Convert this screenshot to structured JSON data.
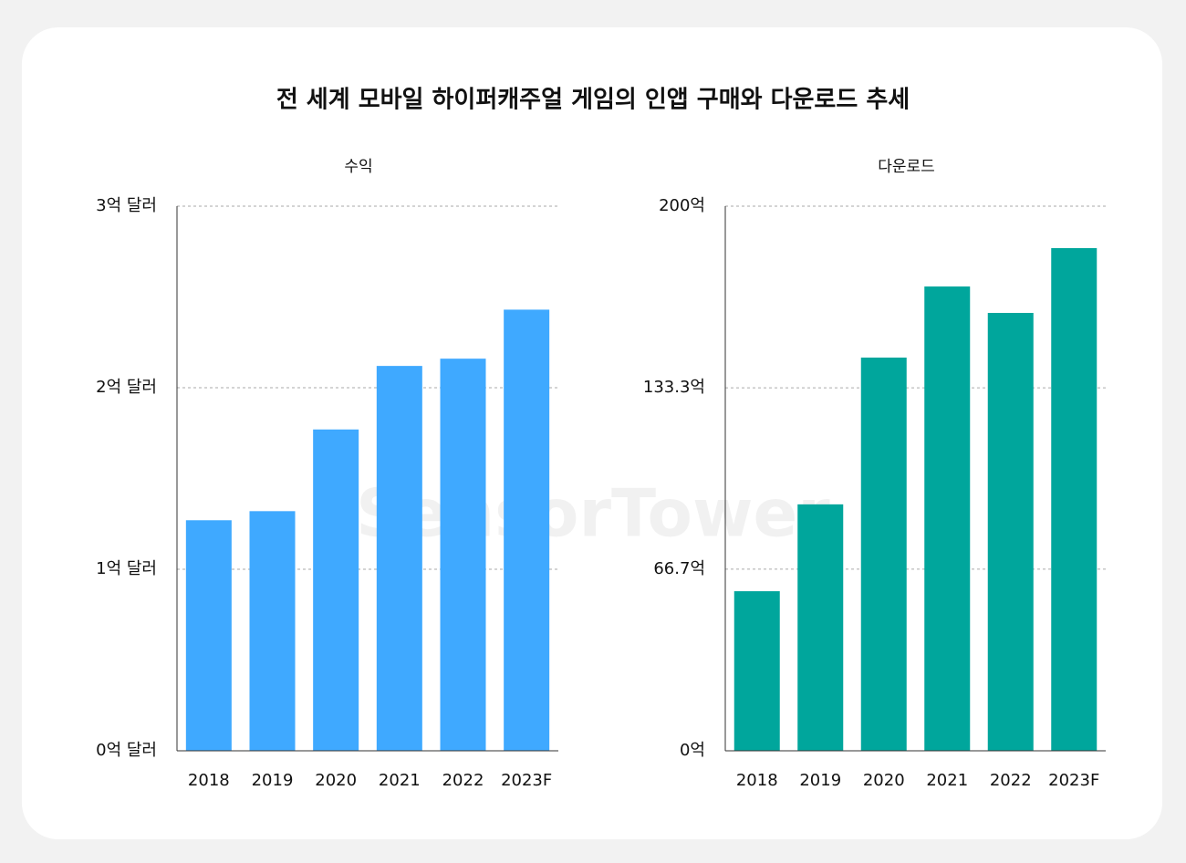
{
  "title": "전 세계 모바일 하이퍼캐주얼 게임의 인앱 구매와 다운로드 추세",
  "watermark": "SensorTower",
  "chart_data": [
    {
      "type": "bar",
      "title": "수익",
      "categories": [
        "2018",
        "2019",
        "2020",
        "2021",
        "2022",
        "2023F"
      ],
      "values": [
        1.27,
        1.32,
        1.77,
        2.12,
        2.16,
        2.43
      ],
      "color": "#3fa9ff",
      "ylim": [
        0,
        3
      ],
      "yticks": [
        {
          "value": 0,
          "label": "0억 달러"
        },
        {
          "value": 1,
          "label": "1억 달러"
        },
        {
          "value": 2,
          "label": "2억 달러"
        },
        {
          "value": 3,
          "label": "3억 달러"
        }
      ],
      "grid": true
    },
    {
      "type": "bar",
      "title": "다운로드",
      "categories": [
        "2018",
        "2019",
        "2020",
        "2021",
        "2022",
        "2023F"
      ],
      "values": [
        58.6,
        90.5,
        144.4,
        170.5,
        160.8,
        184.6
      ],
      "color": "#00a69c",
      "ylim": [
        0,
        200
      ],
      "yticks": [
        {
          "value": 0,
          "label": "0억"
        },
        {
          "value": 66.7,
          "label": "66.7억"
        },
        {
          "value": 133.3,
          "label": "133.3억"
        },
        {
          "value": 200,
          "label": "200억"
        }
      ],
      "grid": true
    }
  ]
}
